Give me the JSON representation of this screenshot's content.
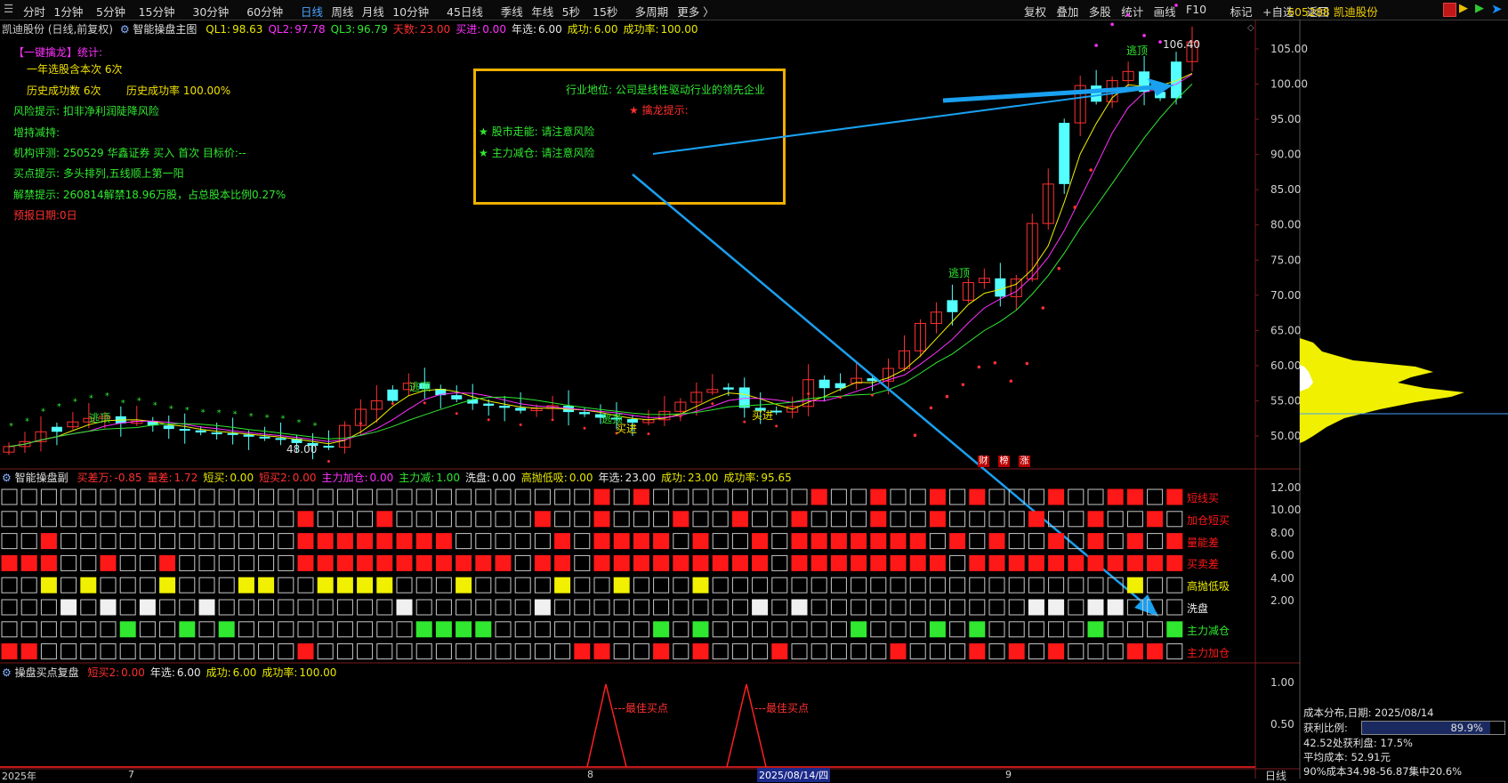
{
  "toolbar": {
    "periods": [
      "分时",
      "1分钟",
      "5分钟",
      "15分钟",
      "30分钟",
      "60分钟",
      "日线",
      "周线",
      "月线",
      "10分钟",
      "45日线",
      "季线",
      "年线",
      "5秒",
      "15秒",
      "多周期",
      "更多 〉"
    ],
    "active_period": "日线",
    "right_tools": [
      "复权",
      "叠加",
      "多股",
      "统计",
      "画线",
      "F10",
      "标记",
      "+自选",
      "返回"
    ],
    "stock": "605288 凯迪股份"
  },
  "main_header": {
    "name": "凯迪股份 (日线,前复权)",
    "indicator": "智能操盘主图",
    "items": [
      {
        "label": "QL1:",
        "value": "98.63",
        "color": "#e8e800"
      },
      {
        "label": "QL2:",
        "value": "97.78",
        "color": "#ff30ff"
      },
      {
        "label": "QL3:",
        "value": "96.79",
        "color": "#30e830"
      },
      {
        "label": "天数:",
        "value": "23.00",
        "color": "#ff3030"
      },
      {
        "label": "买进:",
        "value": "0.00",
        "color": "#ff30ff"
      },
      {
        "label": "年选:",
        "value": "6.00",
        "color": "#e8e8e8"
      },
      {
        "label": "成功:",
        "value": "6.00",
        "color": "#e8e800"
      },
      {
        "label": "成功率:",
        "value": "100.00",
        "color": "#e8e800"
      }
    ]
  },
  "stats_panel": {
    "title": "【一键擒龙】统计:",
    "line1": "一年选股含本次 6次",
    "line2a": "历史成功数 6次",
    "line2b": "历史成功率 100.00%",
    "risk": "风险提示: 扣非净利润陡降风险",
    "holding": "增持减持:",
    "rating": "机构评测: 250529 华鑫证券 买入 首次 目标价:--",
    "buy_tip": "买点提示: 多头排列,五线顺上第一阳",
    "unlock": "解禁提示: 260814解禁18.96万股，占总股本比例0.27%",
    "forecast": "预报日期:0日"
  },
  "info_box": {
    "industry": "行业地位: 公司是线性驱动行业的领先企业",
    "dragon": "★ 擒龙提示:",
    "market": "★ 股市走能:  请注意风险",
    "fund": "★ 主力减仓:  请注意风险"
  },
  "price_axis": [
    "105.00",
    "100.00",
    "95.00",
    "90.00",
    "85.00",
    "80.00",
    "75.00",
    "70.00",
    "65.00",
    "60.00",
    "55.00",
    "50.00"
  ],
  "price_marks": {
    "high": "106.40",
    "low": "48.00",
    "escape": "逃顶",
    "buy": "买进"
  },
  "badges": [
    "财",
    "榜",
    "涨"
  ],
  "sub1_header": {
    "indicator": "智能操盘副",
    "items": [
      {
        "label": "买差万:",
        "value": "-0.85",
        "color": "#ff3030"
      },
      {
        "label": "量差:",
        "value": "1.72",
        "color": "#ff3030"
      },
      {
        "label": "短买:",
        "value": "0.00",
        "color": "#e8e800"
      },
      {
        "label": "短买2:",
        "value": "0.00",
        "color": "#ff3030"
      },
      {
        "label": "主力加仓:",
        "value": "0.00",
        "color": "#ff30ff"
      },
      {
        "label": "主力减:",
        "value": "1.00",
        "color": "#30e830"
      },
      {
        "label": "洗盘:",
        "value": "0.00",
        "color": "#e8e8e8"
      },
      {
        "label": "高抛低吸:",
        "value": "0.00",
        "color": "#e8e800"
      },
      {
        "label": "年选:",
        "value": "23.00",
        "color": "#e8e8e8"
      },
      {
        "label": "成功:",
        "value": "23.00",
        "color": "#e8e800"
      },
      {
        "label": "成功率:",
        "value": "95.65",
        "color": "#e8e800"
      }
    ]
  },
  "sub1_axis": [
    "12.00",
    "10.00",
    "8.00",
    "6.00",
    "4.00",
    "2.00"
  ],
  "sub1_rows": [
    {
      "label": "短线买",
      "color": "#ff1818"
    },
    {
      "label": "加仓短买",
      "color": "#ff1818"
    },
    {
      "label": "量能差",
      "color": "#ff1818"
    },
    {
      "label": "买卖差",
      "color": "#ff1818"
    },
    {
      "label": "高抛低吸",
      "color": "#f0f000"
    },
    {
      "label": "洗盘",
      "color": "#f0f0f0"
    },
    {
      "label": "主力减仓",
      "color": "#30e830"
    },
    {
      "label": "主力加仓",
      "color": "#ff1818"
    }
  ],
  "sub2_header": {
    "indicator": "操盘买点复盘",
    "items": [
      {
        "label": "短买2:",
        "value": "0.00",
        "color": "#ff3030"
      },
      {
        "label": "年选:",
        "value": "6.00",
        "color": "#e8e8e8"
      },
      {
        "label": "成功:",
        "value": "6.00",
        "color": "#e8e800"
      },
      {
        "label": "成功率:",
        "value": "100.00",
        "color": "#e8e800"
      }
    ]
  },
  "sub2_axis": [
    "1.00",
    "0.50"
  ],
  "best_buy": "最佳买点",
  "date_axis": {
    "year": "2025年",
    "m7": "7",
    "m8": "8",
    "m9": "9",
    "cursor": "2025/08/14/四",
    "right": "日线"
  },
  "cost_panel": {
    "title": "成本分布,日期: 2025/08/14",
    "profit_label": "获利比例:",
    "profit_value": "89.9%",
    "profit_pct": 89.9,
    "line3": "42.52处获利盘: 17.5%",
    "line4": "平均成本: 52.91元",
    "line5": "90%成本34.98-56.87集中20.6%"
  }
}
